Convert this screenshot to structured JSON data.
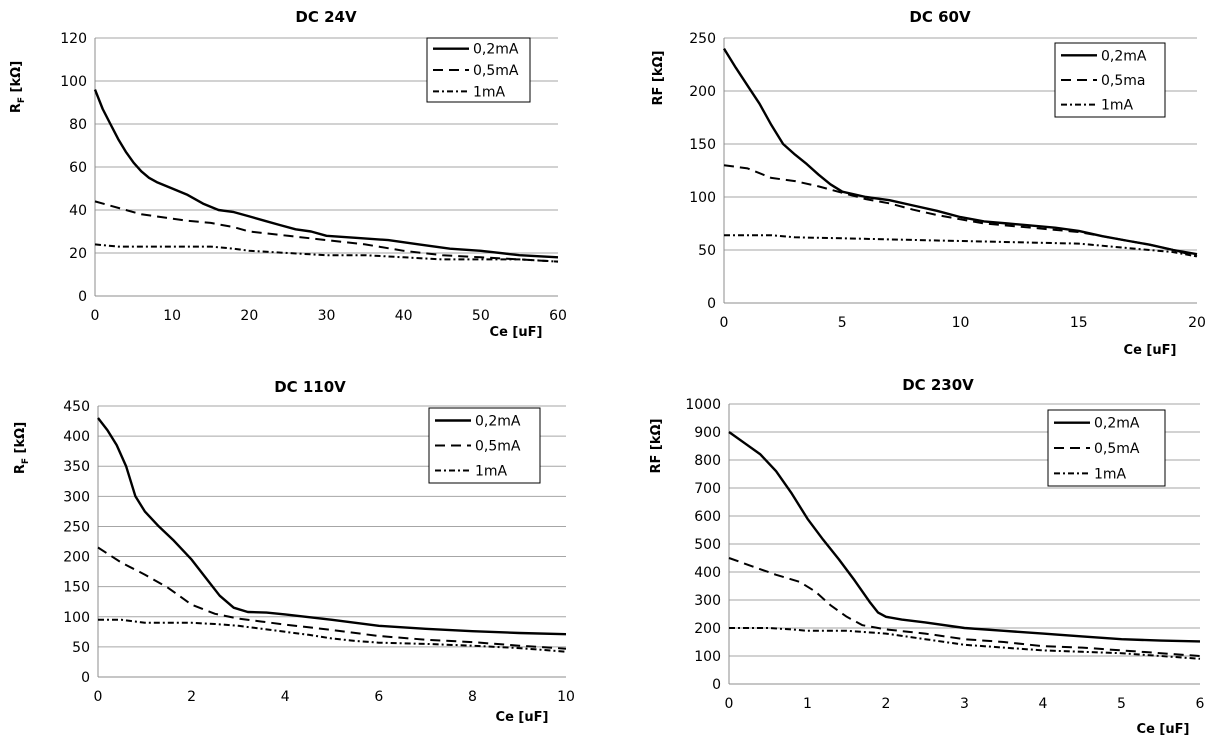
{
  "chart_data": [
    {
      "type": "line",
      "title": "DC 24V",
      "xlabel": "Ce [uF]",
      "ylabel": "R",
      "ylabel_sub": "F",
      "ylabel_tail": " [kΩ]",
      "xlim": [
        0,
        60
      ],
      "ylim": [
        0,
        120
      ],
      "xticks": [
        0,
        10,
        20,
        30,
        40,
        50,
        60
      ],
      "yticks": [
        0,
        20,
        40,
        60,
        80,
        100,
        120
      ],
      "grid": "horizontal",
      "legend_position": "top-right",
      "series": [
        {
          "name": "0,2mA",
          "style": "solid",
          "points": [
            [
              0,
              96
            ],
            [
              1,
              87
            ],
            [
              2,
              80
            ],
            [
              3,
              73
            ],
            [
              4,
              67
            ],
            [
              5,
              62
            ],
            [
              6,
              58
            ],
            [
              7,
              55
            ],
            [
              8,
              53
            ],
            [
              10,
              50
            ],
            [
              12,
              47
            ],
            [
              14,
              43
            ],
            [
              16,
              40
            ],
            [
              18,
              39
            ],
            [
              20,
              37
            ],
            [
              22,
              35
            ],
            [
              24,
              33
            ],
            [
              26,
              31
            ],
            [
              28,
              30
            ],
            [
              30,
              28
            ],
            [
              34,
              27
            ],
            [
              38,
              26
            ],
            [
              42,
              24
            ],
            [
              46,
              22
            ],
            [
              50,
              21
            ],
            [
              55,
              19
            ],
            [
              60,
              18
            ]
          ]
        },
        {
          "name": "0,5mA",
          "style": "dashed",
          "points": [
            [
              0,
              44
            ],
            [
              2,
              42
            ],
            [
              4,
              40
            ],
            [
              6,
              38
            ],
            [
              8,
              37
            ],
            [
              10,
              36
            ],
            [
              12,
              35
            ],
            [
              15,
              34
            ],
            [
              18,
              32
            ],
            [
              20,
              30
            ],
            [
              25,
              28
            ],
            [
              30,
              26
            ],
            [
              35,
              24
            ],
            [
              40,
              21
            ],
            [
              45,
              19
            ],
            [
              50,
              18
            ],
            [
              55,
              17
            ],
            [
              60,
              16
            ]
          ]
        },
        {
          "name": "1mA",
          "style": "dotted",
          "points": [
            [
              0,
              24
            ],
            [
              3,
              23
            ],
            [
              6,
              23
            ],
            [
              10,
              23
            ],
            [
              15,
              23
            ],
            [
              18,
              22
            ],
            [
              20,
              21
            ],
            [
              25,
              20
            ],
            [
              30,
              19
            ],
            [
              35,
              19
            ],
            [
              40,
              18
            ],
            [
              45,
              17
            ],
            [
              50,
              17
            ],
            [
              55,
              17
            ],
            [
              60,
              16
            ]
          ]
        }
      ]
    },
    {
      "type": "line",
      "title": "DC 60V",
      "xlabel": "Ce [uF]",
      "ylabel": "RF [kΩ]",
      "ylabel_sub": "",
      "ylabel_tail": "",
      "xlim": [
        0,
        20
      ],
      "ylim": [
        0,
        250
      ],
      "xticks": [
        0,
        5,
        10,
        15,
        20
      ],
      "yticks": [
        0,
        50,
        100,
        150,
        200,
        250
      ],
      "grid": "horizontal",
      "legend_position": "top-right",
      "series": [
        {
          "name": "0,2mA",
          "style": "solid",
          "points": [
            [
              0,
              240
            ],
            [
              0.5,
              222
            ],
            [
              1,
              205
            ],
            [
              1.5,
              188
            ],
            [
              2,
              168
            ],
            [
              2.5,
              150
            ],
            [
              3,
              140
            ],
            [
              3.5,
              131
            ],
            [
              4,
              121
            ],
            [
              4.5,
              112
            ],
            [
              5,
              105
            ],
            [
              6,
              100
            ],
            [
              7,
              97
            ],
            [
              8,
              92
            ],
            [
              9,
              87
            ],
            [
              10,
              81
            ],
            [
              11,
              77
            ],
            [
              12,
              75
            ],
            [
              13,
              73
            ],
            [
              14,
              71
            ],
            [
              15,
              68
            ],
            [
              16,
              63
            ],
            [
              17,
              59
            ],
            [
              18,
              55
            ],
            [
              19,
              50
            ],
            [
              20,
              46
            ]
          ]
        },
        {
          "name": "0,5ma",
          "style": "dashed",
          "points": [
            [
              0,
              130
            ],
            [
              1,
              127
            ],
            [
              2,
              118
            ],
            [
              3,
              115
            ],
            [
              4,
              110
            ],
            [
              5,
              104
            ],
            [
              6,
              98
            ],
            [
              7,
              94
            ],
            [
              8,
              88
            ],
            [
              9,
              83
            ],
            [
              10,
              79
            ],
            [
              11,
              75
            ],
            [
              12,
              73
            ],
            [
              13,
              71
            ],
            [
              14,
              69
            ],
            [
              15,
              67
            ],
            [
              16,
              63
            ],
            [
              17,
              59
            ],
            [
              18,
              55
            ],
            [
              19,
              50
            ],
            [
              20,
              44
            ]
          ]
        },
        {
          "name": "1mA",
          "style": "dotted",
          "points": [
            [
              0,
              64
            ],
            [
              1,
              64
            ],
            [
              2,
              64
            ],
            [
              3,
              62
            ],
            [
              5,
              61
            ],
            [
              7,
              60
            ],
            [
              9,
              59
            ],
            [
              11,
              58
            ],
            [
              13,
              57
            ],
            [
              15,
              56
            ],
            [
              17,
              52
            ],
            [
              19,
              48
            ],
            [
              20,
              44
            ]
          ]
        }
      ]
    },
    {
      "type": "line",
      "title": "DC 110V",
      "xlabel": "Ce [uF]",
      "ylabel": "R",
      "ylabel_sub": "F",
      "ylabel_tail": " [kΩ]",
      "xlim": [
        0,
        10
      ],
      "ylim": [
        0,
        450
      ],
      "xticks": [
        0,
        2,
        4,
        6,
        8,
        10
      ],
      "yticks": [
        0,
        50,
        100,
        150,
        200,
        250,
        300,
        350,
        400,
        450
      ],
      "grid": "horizontal",
      "legend_position": "top-right",
      "series": [
        {
          "name": "0,2mA",
          "style": "solid",
          "points": [
            [
              0,
              430
            ],
            [
              0.2,
              410
            ],
            [
              0.4,
              385
            ],
            [
              0.6,
              350
            ],
            [
              0.8,
              300
            ],
            [
              1,
              275
            ],
            [
              1.3,
              250
            ],
            [
              1.6,
              228
            ],
            [
              2,
              195
            ],
            [
              2.3,
              165
            ],
            [
              2.6,
              135
            ],
            [
              2.9,
              115
            ],
            [
              3.2,
              108
            ],
            [
              3.6,
              107
            ],
            [
              4,
              104
            ],
            [
              5,
              95
            ],
            [
              6,
              85
            ],
            [
              7,
              80
            ],
            [
              8,
              76
            ],
            [
              9,
              73
            ],
            [
              10,
              71
            ]
          ]
        },
        {
          "name": "0,5mA",
          "style": "dashed",
          "points": [
            [
              0,
              215
            ],
            [
              0.5,
              190
            ],
            [
              1,
              170
            ],
            [
              1.5,
              148
            ],
            [
              2,
              120
            ],
            [
              2.5,
              105
            ],
            [
              3,
              97
            ],
            [
              3.5,
              92
            ],
            [
              4,
              87
            ],
            [
              5,
              78
            ],
            [
              6,
              68
            ],
            [
              7,
              62
            ],
            [
              8,
              58
            ],
            [
              9,
              52
            ],
            [
              10,
              47
            ]
          ]
        },
        {
          "name": "1mA",
          "style": "dotted",
          "points": [
            [
              0,
              95
            ],
            [
              0.5,
              95
            ],
            [
              1,
              90
            ],
            [
              1.5,
              90
            ],
            [
              2,
              90
            ],
            [
              2.5,
              88
            ],
            [
              3,
              85
            ],
            [
              3.5,
              80
            ],
            [
              4,
              75
            ],
            [
              4.5,
              70
            ],
            [
              5,
              64
            ],
            [
              5.5,
              60
            ],
            [
              6,
              57
            ],
            [
              7,
              55
            ],
            [
              8,
              52
            ],
            [
              9,
              48
            ],
            [
              10,
              42
            ]
          ]
        }
      ]
    },
    {
      "type": "line",
      "title": "DC 230V",
      "xlabel": "Ce [uF]",
      "ylabel": "RF [kΩ]",
      "ylabel_sub": "",
      "ylabel_tail": "",
      "xlim": [
        0,
        6
      ],
      "ylim": [
        0,
        1000
      ],
      "xticks": [
        0,
        1,
        2,
        3,
        4,
        5,
        6
      ],
      "yticks": [
        0,
        100,
        200,
        300,
        400,
        500,
        600,
        700,
        800,
        900,
        1000
      ],
      "grid": "horizontal",
      "legend_position": "top-right",
      "series": [
        {
          "name": "0,2mA",
          "style": "solid",
          "points": [
            [
              0,
              900
            ],
            [
              0.2,
              860
            ],
            [
              0.4,
              820
            ],
            [
              0.6,
              760
            ],
            [
              0.8,
              680
            ],
            [
              1,
              590
            ],
            [
              1.2,
              515
            ],
            [
              1.4,
              445
            ],
            [
              1.6,
              370
            ],
            [
              1.8,
              290
            ],
            [
              1.9,
              255
            ],
            [
              2,
              240
            ],
            [
              2.2,
              230
            ],
            [
              2.5,
              220
            ],
            [
              3,
              200
            ],
            [
              3.5,
              190
            ],
            [
              4,
              180
            ],
            [
              4.5,
              170
            ],
            [
              5,
              160
            ],
            [
              5.5,
              155
            ],
            [
              6,
              152
            ]
          ]
        },
        {
          "name": "0,5mA",
          "style": "dashed",
          "points": [
            [
              0,
              450
            ],
            [
              0.3,
              420
            ],
            [
              0.6,
              390
            ],
            [
              0.9,
              365
            ],
            [
              1.1,
              330
            ],
            [
              1.3,
              280
            ],
            [
              1.5,
              240
            ],
            [
              1.7,
              210
            ],
            [
              2,
              195
            ],
            [
              2.5,
              180
            ],
            [
              3,
              160
            ],
            [
              3.5,
              150
            ],
            [
              4,
              135
            ],
            [
              4.5,
              130
            ],
            [
              5,
              120
            ],
            [
              5.5,
              110
            ],
            [
              6,
              100
            ]
          ]
        },
        {
          "name": "1mA",
          "style": "dotted",
          "points": [
            [
              0,
              200
            ],
            [
              0.5,
              200
            ],
            [
              0.8,
              195
            ],
            [
              1,
              190
            ],
            [
              1.5,
              190
            ],
            [
              2,
              180
            ],
            [
              2.5,
              160
            ],
            [
              3,
              140
            ],
            [
              3.5,
              130
            ],
            [
              4,
              120
            ],
            [
              4.5,
              115
            ],
            [
              5,
              110
            ],
            [
              5.5,
              100
            ],
            [
              6,
              90
            ]
          ]
        }
      ]
    }
  ]
}
